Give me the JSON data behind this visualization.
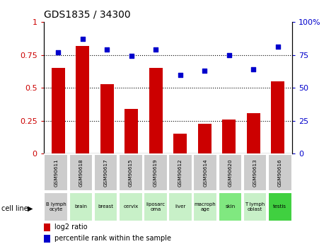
{
  "title": "GDS1835 / 34300",
  "gsm_labels": [
    "GSM90611",
    "GSM90618",
    "GSM90617",
    "GSM90615",
    "GSM90619",
    "GSM90612",
    "GSM90614",
    "GSM90620",
    "GSM90613",
    "GSM90616"
  ],
  "cell_lines": [
    "B lymph\nocyte",
    "brain",
    "breast",
    "cervix",
    "liposarc\noma",
    "liver",
    "macroph\nage",
    "skin",
    "T lymph\noblast",
    "testis"
  ],
  "cell_line_colors": [
    "#d0d0d0",
    "#c8f0c8",
    "#c8f0c8",
    "#c8f0c8",
    "#c8f0c8",
    "#c8f0c8",
    "#c8f0c8",
    "#80e880",
    "#c8f0c8",
    "#40d040"
  ],
  "bar_values": [
    0.65,
    0.82,
    0.53,
    0.34,
    0.65,
    0.15,
    0.23,
    0.26,
    0.31,
    0.55
  ],
  "dot_values": [
    77,
    87,
    79,
    74,
    79,
    60,
    63,
    75,
    64,
    81
  ],
  "bar_color": "#cc0000",
  "dot_color": "#0000cc",
  "ylim_left": [
    0,
    1.0
  ],
  "ylim_right": [
    0,
    100
  ],
  "yticks_left": [
    0,
    0.25,
    0.5,
    0.75,
    1.0
  ],
  "ytick_labels_left": [
    "0",
    "0.25",
    "0.5",
    "0.75",
    "1"
  ],
  "yticks_right": [
    0,
    25,
    50,
    75,
    100
  ],
  "ytick_labels_right": [
    "0",
    "25",
    "50",
    "75",
    "100%"
  ],
  "gsm_row_color": "#cccccc",
  "cell_line_label": "cell line",
  "legend_log2": "log2 ratio",
  "legend_pct": "percentile rank within the sample",
  "grid_lines": [
    0.25,
    0.5,
    0.75
  ]
}
